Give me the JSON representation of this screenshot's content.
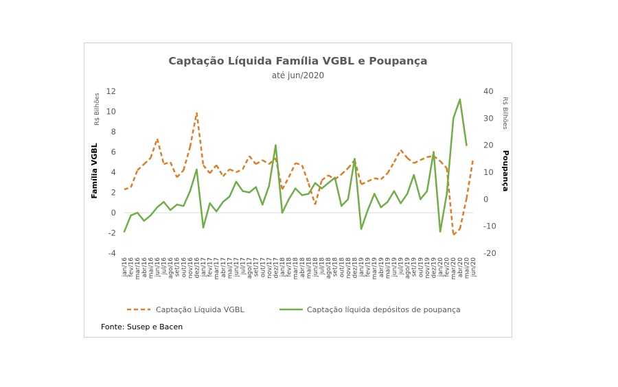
{
  "chart_data": {
    "type": "line",
    "title": "Captação Líquida Família VGBL e Poupança",
    "subtitle": "até jun/2020",
    "y_left": {
      "label": "Família VGBL",
      "unit": "R$ Bilhões",
      "range": [
        -4,
        12
      ],
      "ticks": [
        "-4",
        "-2",
        "0",
        "2",
        "4",
        "6",
        "8",
        "10",
        "12"
      ]
    },
    "y_right": {
      "label": "Poupança",
      "unit": "R$ Bilhões",
      "range": [
        -20,
        40
      ],
      "ticks": [
        "-20",
        "-10",
        "0",
        "10",
        "20",
        "30",
        "40"
      ]
    },
    "categories": [
      "jan/16",
      "fev/16",
      "mar/16",
      "abr/16",
      "mai/16",
      "jun/16",
      "jul/16",
      "ago/16",
      "set/16",
      "out/16",
      "nov/16",
      "dez/16",
      "jan/17",
      "fev/17",
      "mar/17",
      "abr/17",
      "mai/17",
      "jun/17",
      "jul/17",
      "ago/17",
      "set/17",
      "out/17",
      "nov/17",
      "dez/17",
      "jan/18",
      "fev/18",
      "mar/18",
      "abr/18",
      "mai/18",
      "jun/18",
      "jul/18",
      "ago/18",
      "set/18",
      "out/18",
      "nov/18",
      "dez/18",
      "jan/19",
      "fev/19",
      "mar/19",
      "abr/19",
      "mai/19",
      "jun/19",
      "jul/19",
      "ago/19",
      "set/19",
      "out/19",
      "nov/19",
      "dez/19",
      "jan/20",
      "fev/20",
      "mar/20",
      "abr/20",
      "mai/20",
      "jun/20"
    ],
    "series": [
      {
        "name": "Captação Líquida VGBL",
        "axis": "left",
        "color": "#E07B22",
        "style": "dashed",
        "values": [
          2.3,
          2.5,
          4.2,
          4.8,
          5.4,
          7.3,
          4.8,
          5.0,
          3.5,
          4.2,
          6.5,
          9.9,
          4.7,
          3.9,
          4.7,
          3.6,
          4.3,
          4.0,
          4.3,
          5.6,
          4.8,
          5.2,
          4.8,
          5.4,
          2.3,
          3.5,
          4.9,
          4.7,
          2.9,
          0.8,
          3.2,
          3.7,
          3.3,
          3.8,
          4.4,
          5.2,
          2.8,
          3.1,
          3.4,
          3.3,
          3.9,
          5.0,
          6.2,
          5.4,
          4.9,
          5.2,
          5.5,
          5.6,
          5.1,
          4.4,
          -2.2,
          -1.6,
          1.4,
          5.3
        ]
      },
      {
        "name": "Captação líquida depósitos de poupança",
        "axis": "right",
        "color": "#70AD47",
        "style": "solid",
        "values": [
          -12,
          -6,
          -5,
          -8,
          -6,
          -3,
          -1,
          -4,
          -2,
          -2.5,
          3,
          11,
          -10.5,
          -1.5,
          -4.5,
          -1,
          1,
          6.5,
          3,
          2.5,
          4.5,
          -2,
          5,
          20,
          -5,
          0,
          4,
          1.5,
          2,
          6,
          4,
          6,
          8,
          -2.5,
          0,
          15,
          -11,
          -4,
          2,
          -3,
          -1,
          3,
          -1.5,
          2,
          9,
          0,
          3,
          17.5,
          -12,
          2,
          30,
          37,
          20,
          null
        ]
      }
    ],
    "legend": [
      "Captação Líquida VGBL",
      "Captação líquida depósitos de poupança"
    ],
    "legend_position": "bottom",
    "source": "Fonte: Susep e Bacen"
  }
}
